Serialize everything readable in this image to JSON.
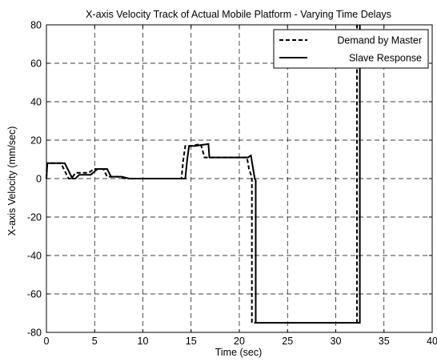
{
  "chart_data": {
    "type": "line",
    "title": "X-axis Velocity Track of Actual Mobile Platform - Varying Time Delays",
    "xlabel": "Time (sec)",
    "ylabel": "X-axis Velocity (mm/sec)",
    "xlim": [
      0,
      40
    ],
    "ylim": [
      -80,
      80
    ],
    "xticks": [
      0,
      5,
      10,
      15,
      20,
      25,
      30,
      35,
      40
    ],
    "yticks": [
      -80,
      -60,
      -40,
      -20,
      0,
      20,
      40,
      60,
      80
    ],
    "grid": true,
    "legend_position": "top-right",
    "series": [
      {
        "name": "Demand by Master",
        "style": "dashed",
        "color": "#000000",
        "x": [
          0,
          0.05,
          1.5,
          2.3,
          2.6,
          3.0,
          4.4,
          4.9,
          5.9,
          6.3,
          7.4,
          8.2,
          14.0,
          14.2,
          14.4,
          15.0,
          16.0,
          16.4,
          20.5,
          20.8,
          21.0,
          21.2,
          21.3,
          21.3,
          31.9,
          32.2,
          32.2
        ],
        "y": [
          0,
          8,
          8,
          0,
          0,
          3,
          3,
          5,
          5,
          1,
          1,
          0,
          0,
          10,
          17,
          17,
          18,
          11,
          11,
          11,
          5,
          2,
          0,
          -75,
          -75,
          -75,
          80
        ]
      },
      {
        "name": "Slave Response",
        "style": "solid",
        "color": "#000000",
        "x": [
          0,
          0.1,
          1.9,
          2.7,
          3.0,
          3.4,
          4.6,
          5.3,
          6.3,
          6.7,
          7.8,
          8.6,
          14.4,
          14.6,
          14.8,
          15.4,
          16.8,
          16.9,
          20.5,
          20.9,
          21.2,
          21.4,
          21.5,
          21.6,
          21.7,
          21.7,
          32.4,
          32.5,
          32.5
        ],
        "y": [
          0,
          8,
          8,
          0,
          0,
          2,
          2,
          5,
          5,
          1,
          1,
          0,
          0,
          10,
          17,
          17,
          18,
          11,
          11,
          11,
          12,
          6,
          3,
          0,
          -1,
          -75,
          -75,
          -75,
          80
        ]
      }
    ]
  }
}
